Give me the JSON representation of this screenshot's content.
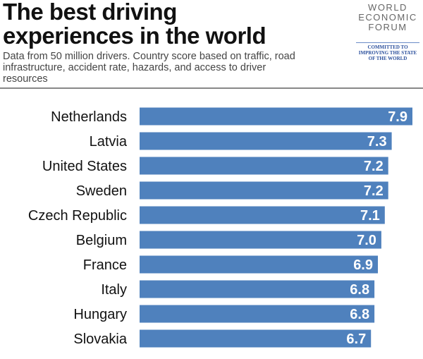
{
  "title_line1": "The best driving",
  "title_line2": "experiences in the world",
  "subtitle": "Data from 50 million drivers. Country score based on traffic, road infrastructure, accident rate, hazards, and access to driver resources",
  "logo": {
    "l1": "WORLD",
    "l2": "ECONOMIC",
    "l3": "FORUM",
    "tagline": "COMMITTED TO IMPROVING THE STATE OF THE WORLD"
  },
  "colors": {
    "bar": "#4f81bd",
    "label": "#ffffff"
  },
  "chart_data": {
    "type": "bar",
    "orientation": "horizontal",
    "categories": [
      "Netherlands",
      "Latvia",
      "United States",
      "Sweden",
      "Czech Republic",
      "Belgium",
      "France",
      "Italy",
      "Hungary",
      "Slovakia"
    ],
    "values": [
      7.9,
      7.3,
      7.2,
      7.2,
      7.1,
      7.0,
      6.9,
      6.8,
      6.8,
      6.7
    ],
    "value_labels": [
      "7.9",
      "7.3",
      "7.2",
      "7.2",
      "7.1",
      "7.0",
      "6.9",
      "6.8",
      "6.8",
      "6.7"
    ],
    "xlim": [
      0,
      7.9
    ],
    "grid": false
  }
}
